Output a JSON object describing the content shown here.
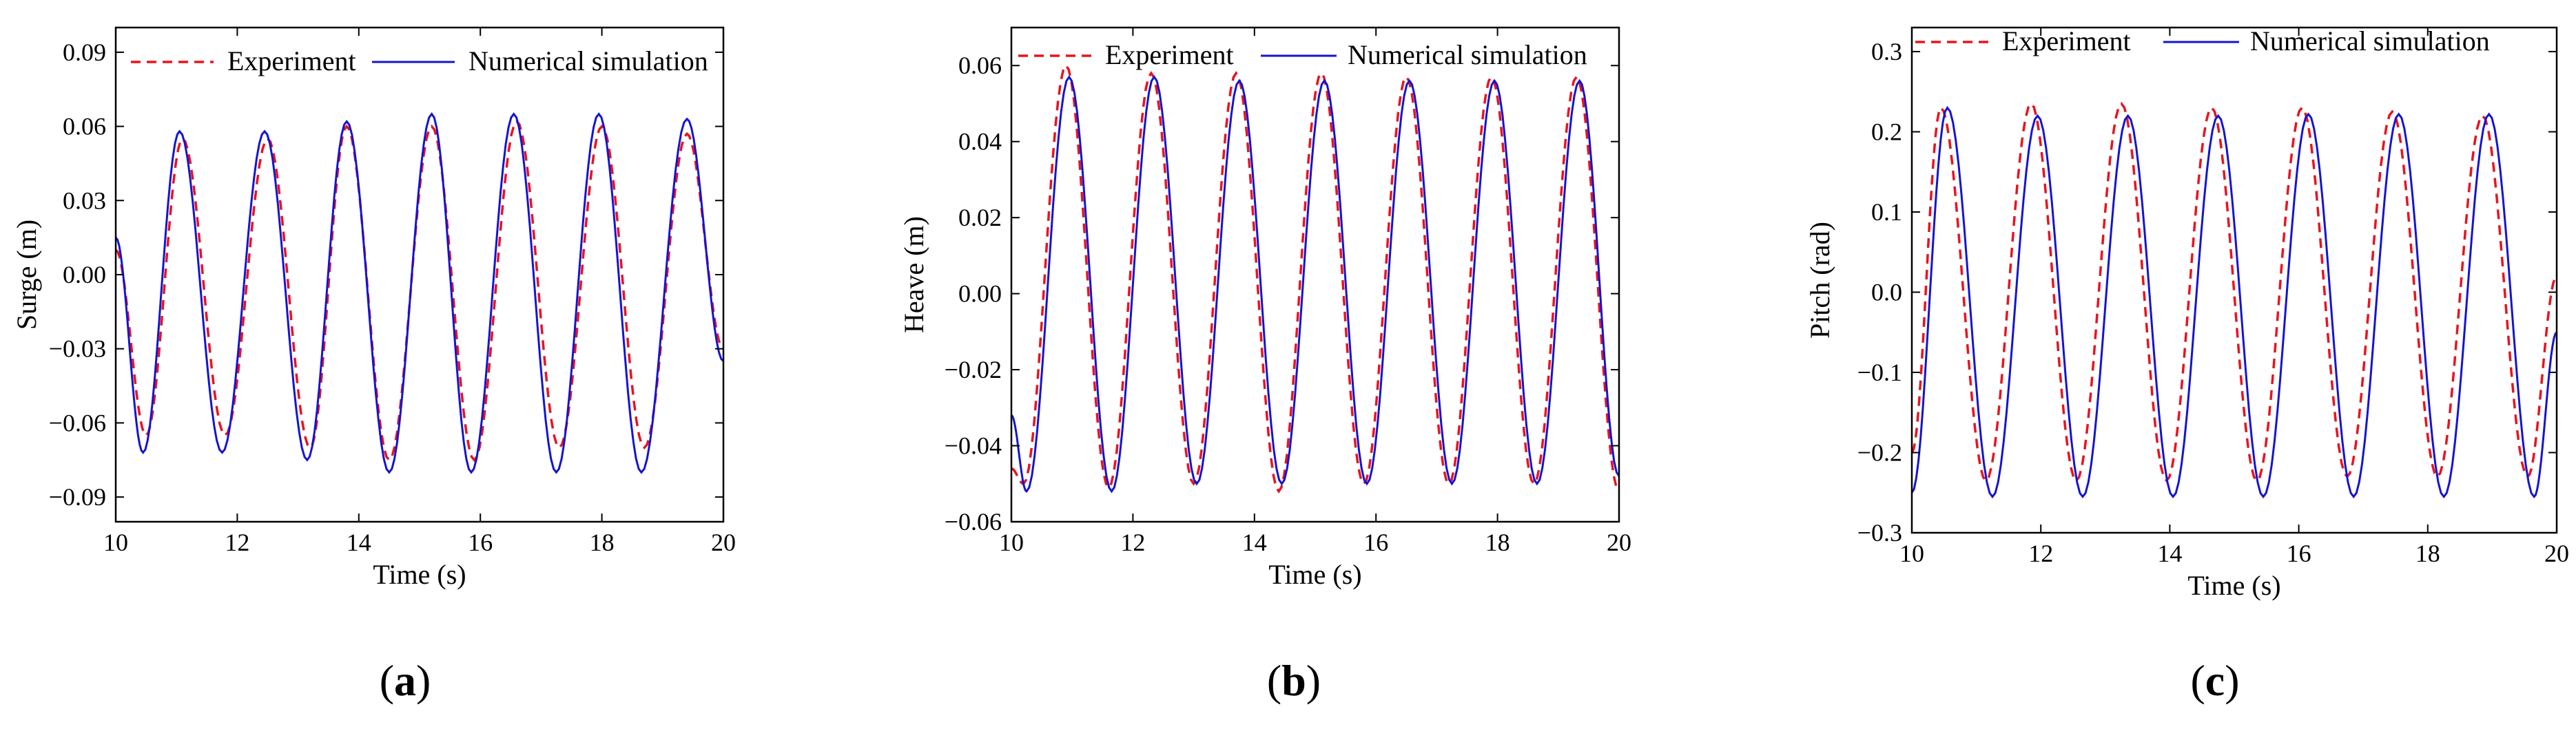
{
  "legend": {
    "experiment": "Experiment",
    "simulation": "Numerical simulation"
  },
  "colors": {
    "experiment": "#e8141d",
    "simulation": "#1414d2",
    "axis": "#000000"
  },
  "chart_data": [
    {
      "id": "a",
      "type": "line",
      "panel_label": "a",
      "title": "",
      "xlabel": "Time (s)",
      "ylabel": "Surge (m)",
      "xlim": [
        10,
        20
      ],
      "ylim": [
        -0.1,
        0.1
      ],
      "xticks": [
        10,
        12,
        14,
        16,
        18,
        20
      ],
      "xtick_labels": [
        "10",
        "12",
        "14",
        "16",
        "18",
        "20"
      ],
      "yticks": [
        -0.09,
        -0.06,
        -0.03,
        0.0,
        0.03,
        0.06,
        0.09
      ],
      "ytick_labels": [
        "−0.09",
        "−0.06",
        "−0.03",
        "0.00",
        "0.03",
        "0.06",
        "0.09"
      ],
      "legend_position": "top-right",
      "series": [
        {
          "name": "Experiment",
          "style": "dashed",
          "x": [
            10.0,
            10.5,
            11.1,
            11.8,
            12.5,
            13.2,
            13.8,
            14.5,
            15.2,
            15.9,
            16.6,
            17.3,
            18.0,
            18.7,
            19.4,
            20.0
          ],
          "y": [
            0.01,
            -0.065,
            0.055,
            -0.065,
            0.055,
            -0.07,
            0.06,
            -0.075,
            0.06,
            -0.075,
            0.062,
            -0.07,
            0.06,
            -0.07,
            0.057,
            -0.03
          ]
        },
        {
          "name": "Numerical simulation",
          "style": "solid",
          "x": [
            10.0,
            10.45,
            11.05,
            11.75,
            12.45,
            13.15,
            13.8,
            14.5,
            15.2,
            15.85,
            16.55,
            17.25,
            17.95,
            18.65,
            19.4,
            20.0
          ],
          "y": [
            0.015,
            -0.072,
            0.058,
            -0.072,
            0.058,
            -0.075,
            0.062,
            -0.08,
            0.065,
            -0.08,
            0.065,
            -0.08,
            0.065,
            -0.08,
            0.063,
            -0.035
          ]
        }
      ]
    },
    {
      "id": "b",
      "type": "line",
      "panel_label": "b",
      "title": "",
      "xlabel": "Time (s)",
      "ylabel": "Heave (m)",
      "xlim": [
        10,
        20
      ],
      "ylim": [
        -0.06,
        0.07
      ],
      "xticks": [
        10,
        12,
        14,
        16,
        18,
        20
      ],
      "xtick_labels": [
        "10",
        "12",
        "14",
        "16",
        "18",
        "20"
      ],
      "yticks": [
        -0.06,
        -0.04,
        -0.02,
        0.0,
        0.02,
        0.04,
        0.06
      ],
      "ytick_labels": [
        "−0.06",
        "−0.04",
        "−0.02",
        "0.00",
        "0.02",
        "0.04",
        "0.06"
      ],
      "legend_position": "top-right",
      "series": [
        {
          "name": "Experiment",
          "style": "dashed",
          "x": [
            10.0,
            10.2,
            10.9,
            11.6,
            12.3,
            13.0,
            13.7,
            14.4,
            15.1,
            15.8,
            16.5,
            17.2,
            17.9,
            18.6,
            19.3,
            20.0
          ],
          "y": [
            -0.046,
            -0.05,
            0.06,
            -0.051,
            0.058,
            -0.05,
            0.058,
            -0.052,
            0.058,
            -0.05,
            0.057,
            -0.05,
            0.057,
            -0.05,
            0.057,
            -0.052
          ]
        },
        {
          "name": "Numerical simulation",
          "style": "solid",
          "x": [
            10.0,
            10.25,
            10.95,
            11.65,
            12.35,
            13.05,
            13.75,
            14.45,
            15.15,
            15.85,
            16.55,
            17.25,
            17.95,
            18.65,
            19.35,
            20.0
          ],
          "y": [
            -0.032,
            -0.052,
            0.057,
            -0.052,
            0.057,
            -0.05,
            0.056,
            -0.05,
            0.056,
            -0.05,
            0.056,
            -0.05,
            0.056,
            -0.05,
            0.056,
            -0.048
          ]
        }
      ]
    },
    {
      "id": "c",
      "type": "line",
      "panel_label": "c",
      "title": "",
      "xlabel": "Time (s)",
      "ylabel": "Pitch (rad)",
      "xlim": [
        10,
        20
      ],
      "ylim": [
        -0.3,
        0.33
      ],
      "xticks": [
        10,
        12,
        14,
        16,
        18,
        20
      ],
      "xtick_labels": [
        "10",
        "12",
        "14",
        "16",
        "18",
        "20"
      ],
      "yticks": [
        -0.3,
        -0.2,
        -0.1,
        0.0,
        0.1,
        0.2,
        0.3
      ],
      "ytick_labels": [
        "−0.3",
        "−0.2",
        "−0.1",
        "0.0",
        "0.1",
        "0.2",
        "0.3"
      ],
      "legend_position": "top",
      "series": [
        {
          "name": "Experiment",
          "style": "dashed",
          "x": [
            10.0,
            10.45,
            11.15,
            11.85,
            12.55,
            13.25,
            13.95,
            14.65,
            15.35,
            16.05,
            16.75,
            17.45,
            18.15,
            18.85,
            19.55,
            20.0
          ],
          "y": [
            -0.2,
            0.23,
            -0.235,
            0.235,
            -0.235,
            0.235,
            -0.235,
            0.23,
            -0.235,
            0.23,
            -0.23,
            0.225,
            -0.23,
            0.22,
            -0.23,
            0.02
          ]
        },
        {
          "name": "Numerical simulation",
          "style": "solid",
          "x": [
            10.0,
            10.55,
            11.25,
            11.95,
            12.65,
            13.35,
            14.05,
            14.75,
            15.45,
            16.15,
            16.85,
            17.55,
            18.25,
            18.95,
            19.65,
            20.0
          ],
          "y": [
            -0.25,
            0.23,
            -0.255,
            0.22,
            -0.255,
            0.22,
            -0.255,
            0.22,
            -0.255,
            0.222,
            -0.255,
            0.222,
            -0.255,
            0.222,
            -0.255,
            -0.05
          ]
        }
      ]
    }
  ]
}
